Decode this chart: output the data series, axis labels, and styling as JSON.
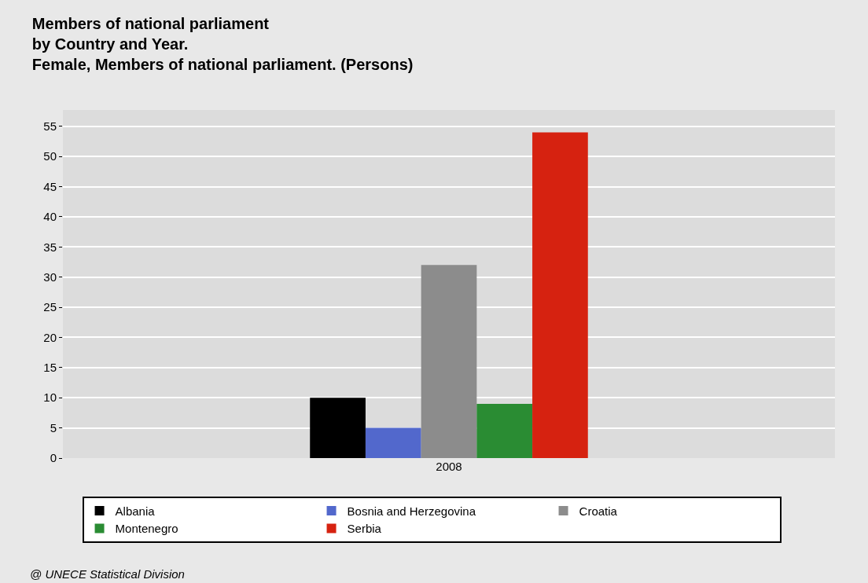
{
  "chart_data": {
    "type": "bar",
    "title": "Members of national parliament\nby Country and Year.\nFemale, Members of national parliament. (Persons)",
    "categories": [
      "2008"
    ],
    "series": [
      {
        "name": "Albania",
        "color": "#000000",
        "values": [
          10
        ]
      },
      {
        "name": "Bosnia and Herzegovina",
        "color": "#5268cc",
        "values": [
          5
        ]
      },
      {
        "name": "Croatia",
        "color": "#8c8c8c",
        "values": [
          32
        ]
      },
      {
        "name": "Montenegro",
        "color": "#2a8c33",
        "values": [
          9
        ]
      },
      {
        "name": "Serbia",
        "color": "#d62210",
        "values": [
          54
        ]
      }
    ],
    "ylim": [
      0,
      57.7
    ],
    "yticks": [
      0,
      5,
      10,
      15,
      20,
      25,
      30,
      35,
      40,
      45,
      50,
      55
    ],
    "grid": "y",
    "legend": "bottom",
    "annotations": [
      "@ UNECE Statistical Division"
    ]
  }
}
